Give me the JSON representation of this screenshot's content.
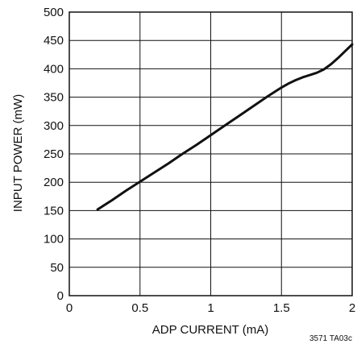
{
  "chart_data": {
    "type": "line",
    "xlabel": "ADP CURRENT (mA)",
    "ylabel": "INPUT POWER (mW)",
    "xlim": [
      0,
      2
    ],
    "ylim": [
      0,
      500
    ],
    "xticks": [
      0,
      0.5,
      1,
      1.5,
      2
    ],
    "yticks": [
      0,
      50,
      100,
      150,
      200,
      250,
      300,
      350,
      400,
      450,
      500
    ],
    "xtick_labels": [
      "0",
      "0.5",
      "1",
      "1.5",
      "2"
    ],
    "ytick_labels": [
      "0",
      "50",
      "100",
      "150",
      "200",
      "250",
      "300",
      "350",
      "400",
      "450",
      "500"
    ],
    "grid": true,
    "series": [
      {
        "x": [
          0.2,
          0.3,
          0.4,
          0.5,
          0.6,
          0.7,
          0.8,
          0.9,
          1.0,
          1.1,
          1.2,
          1.3,
          1.4,
          1.5,
          1.55,
          1.6,
          1.65,
          1.7,
          1.75,
          1.8,
          1.85,
          1.9,
          1.95,
          2.0
        ],
        "y": [
          152,
          168,
          185,
          201,
          217,
          233,
          250,
          266,
          283,
          300,
          317,
          334,
          351,
          367,
          374,
          380,
          385,
          389,
          393,
          399,
          408,
          419,
          431,
          443
        ],
        "color": "#111111"
      }
    ],
    "annotation": "3571 TA03c"
  }
}
